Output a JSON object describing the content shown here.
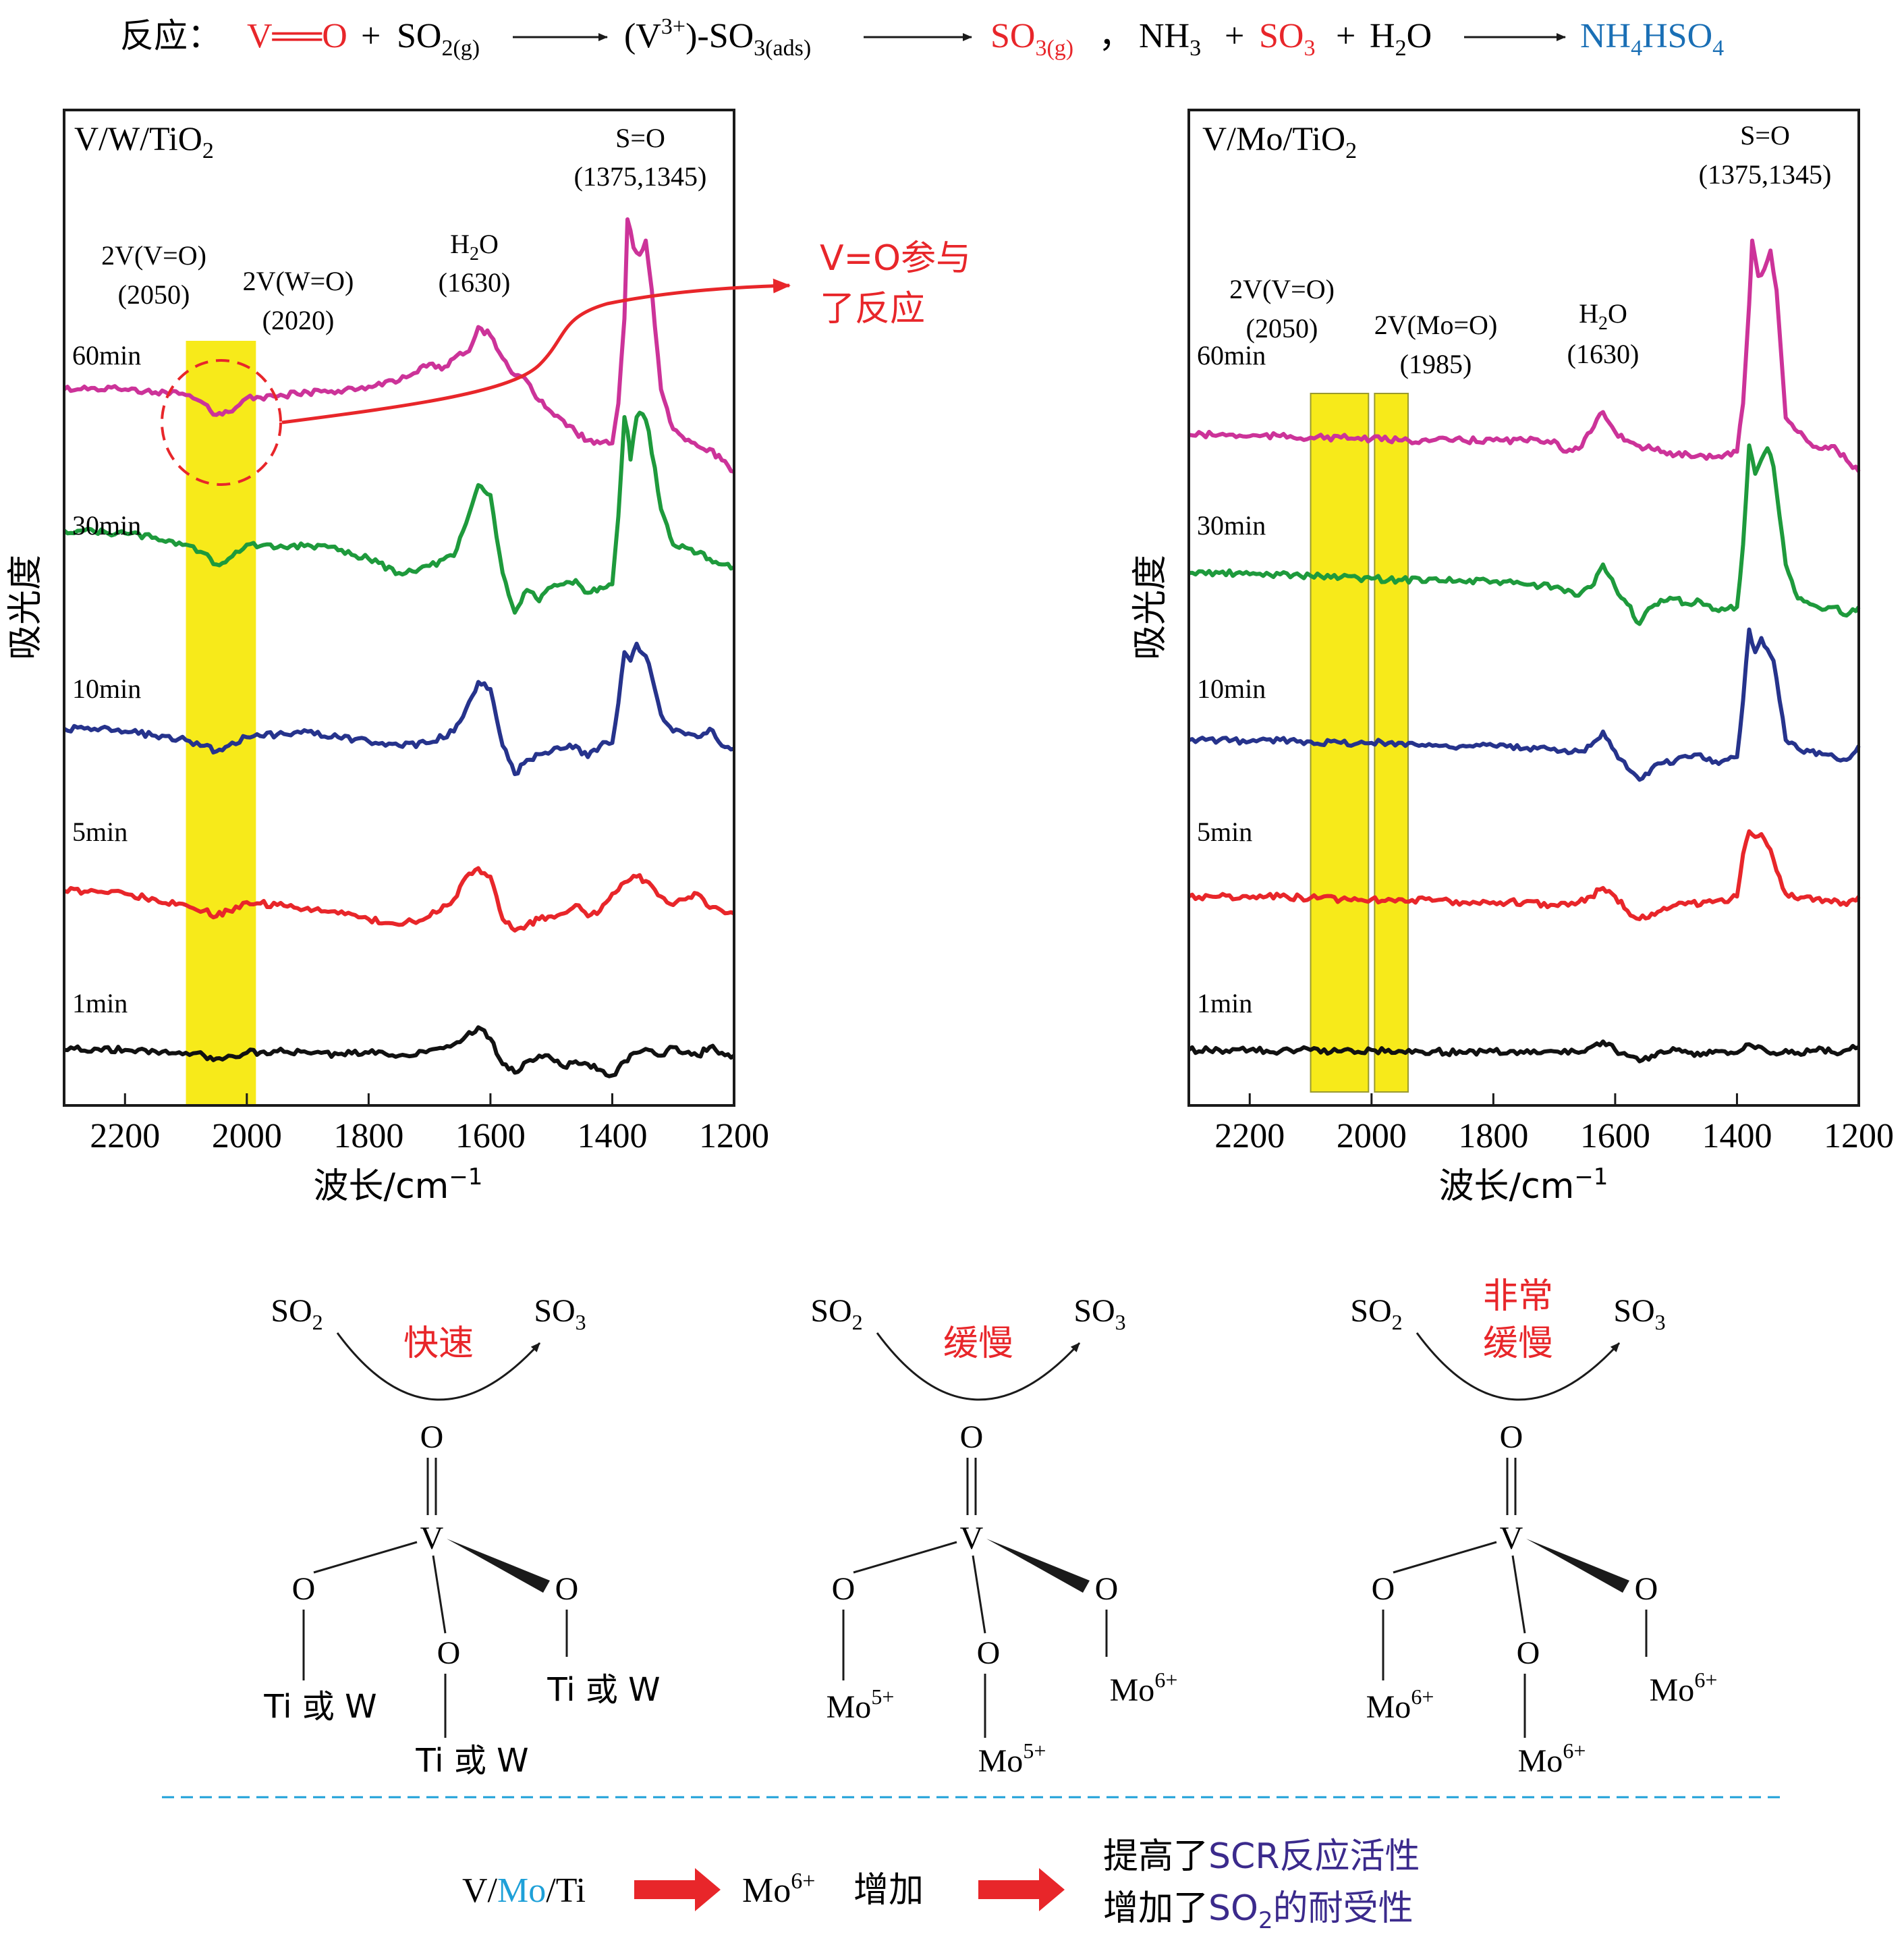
{
  "equation": {
    "label": "反应：",
    "vo": "V══O",
    "plus1": "+",
    "so2": "SO",
    "so2_sub": "2(g)",
    "v3": "(V",
    "v3_sup": "3+",
    "v3_rest": ")-SO",
    "v3_sub": "3(ads)",
    "so3g": "SO",
    "so3g_sub": "3(g)",
    "comma": "，",
    "nh3": "NH",
    "nh3_sub": "3",
    "plus2": "+",
    "so3": "SO",
    "so3_sub": "3",
    "plus3": "+",
    "h2o": "H",
    "h2o_sub": "2",
    "h2o_end": "O",
    "product": "NH",
    "product_sub1": "4",
    "product_mid": "HSO",
    "product_sub2": "4"
  },
  "colors": {
    "red": "#e8262a",
    "blue": "#1a6fb5",
    "cyan": "#1ea0d8",
    "purple": "#3b2a8c",
    "highlight": "#f7ea1a",
    "min60": "#cc3399",
    "min30": "#1e9a3c",
    "min10": "#26338c",
    "min5": "#e8262a",
    "min1": "#111111"
  },
  "chart_data": [
    {
      "type": "line",
      "panel": "left",
      "title": "V/W/TiO",
      "title_sub": "2",
      "xlabel": "波长/cm",
      "xlabel_sup": "−1",
      "ylabel": "吸光度",
      "xlim": [
        2300,
        1200
      ],
      "xticks": [
        "2200",
        "2000",
        "1800",
        "1600",
        "1400",
        "1200"
      ],
      "xtick_values": [
        2200,
        2000,
        1800,
        1600,
        1400,
        1200
      ],
      "highlight_bands": [
        [
          2100,
          1985
        ]
      ],
      "annotations": {
        "so": "S=O",
        "so_pos": "(1375,1345)",
        "h2o": "H",
        "h2o_sub": "2",
        "h2o_end": "O",
        "h2o_pos": "(1630)",
        "band1": "2V(V=O)",
        "band1_pos": "(2050)",
        "band2": "2V(W=O)",
        "band2_pos": "(2020)",
        "callout_line1": "V=O参与",
        "callout_line2": "了反应"
      },
      "series": [
        {
          "name": "60min",
          "x": [
            2300,
            2250,
            2200,
            2150,
            2100,
            2070,
            2050,
            2030,
            2000,
            1950,
            1900,
            1850,
            1800,
            1750,
            1720,
            1700,
            1680,
            1660,
            1640,
            1630,
            1620,
            1600,
            1580,
            1560,
            1540,
            1520,
            1500,
            1480,
            1460,
            1440,
            1420,
            1400,
            1390,
            1380,
            1375,
            1365,
            1355,
            1345,
            1335,
            1320,
            1300,
            1280,
            1260,
            1240,
            1220,
            1200
          ],
          "y": [
            0.6,
            0.61,
            0.6,
            0.58,
            0.56,
            0.5,
            0.42,
            0.44,
            0.54,
            0.55,
            0.58,
            0.59,
            0.62,
            0.66,
            0.72,
            0.78,
            0.74,
            0.82,
            0.86,
            0.92,
            1.04,
            0.98,
            0.82,
            0.7,
            0.66,
            0.52,
            0.44,
            0.38,
            0.3,
            0.24,
            0.22,
            0.22,
            0.5,
            1.1,
            1.8,
            1.6,
            1.55,
            1.65,
            1.3,
            0.6,
            0.32,
            0.24,
            0.2,
            0.18,
            0.1,
            0.02
          ]
        },
        {
          "name": "30min",
          "x": [
            2300,
            2250,
            2200,
            2150,
            2100,
            2070,
            2050,
            2030,
            2000,
            1950,
            1900,
            1850,
            1800,
            1750,
            1700,
            1660,
            1640,
            1620,
            1600,
            1580,
            1560,
            1540,
            1520,
            1500,
            1480,
            1460,
            1440,
            1420,
            1400,
            1390,
            1380,
            1375,
            1370,
            1360,
            1350,
            1340,
            1320,
            1300,
            1280,
            1260,
            1240,
            1220,
            1200
          ],
          "y": [
            0.7,
            0.69,
            0.68,
            0.65,
            0.6,
            0.54,
            0.46,
            0.5,
            0.6,
            0.58,
            0.6,
            0.56,
            0.5,
            0.4,
            0.45,
            0.52,
            0.75,
            1.02,
            0.95,
            0.4,
            0.12,
            0.28,
            0.2,
            0.3,
            0.32,
            0.35,
            0.26,
            0.3,
            0.32,
            0.8,
            1.5,
            1.4,
            1.2,
            1.5,
            1.52,
            1.4,
            0.85,
            0.6,
            0.58,
            0.54,
            0.5,
            0.46,
            0.44
          ]
        },
        {
          "name": "10min",
          "x": [
            2300,
            2250,
            2200,
            2150,
            2100,
            2070,
            2050,
            2030,
            2000,
            1950,
            1900,
            1850,
            1800,
            1750,
            1700,
            1660,
            1640,
            1620,
            1600,
            1580,
            1560,
            1540,
            1520,
            1500,
            1480,
            1460,
            1440,
            1420,
            1400,
            1390,
            1380,
            1370,
            1360,
            1350,
            1340,
            1330,
            1320,
            1300,
            1280,
            1260,
            1240,
            1220,
            1200
          ],
          "y": [
            0.42,
            0.42,
            0.4,
            0.37,
            0.34,
            0.3,
            0.26,
            0.3,
            0.36,
            0.38,
            0.4,
            0.36,
            0.33,
            0.3,
            0.32,
            0.4,
            0.56,
            0.75,
            0.7,
            0.3,
            0.1,
            0.2,
            0.24,
            0.26,
            0.28,
            0.3,
            0.22,
            0.3,
            0.32,
            0.6,
            0.96,
            0.9,
            1.02,
            0.95,
            0.88,
            0.7,
            0.52,
            0.4,
            0.38,
            0.36,
            0.42,
            0.3,
            0.28
          ]
        },
        {
          "name": "5min",
          "x": [
            2300,
            2250,
            2200,
            2150,
            2100,
            2070,
            2050,
            2030,
            2000,
            1950,
            1900,
            1850,
            1800,
            1750,
            1700,
            1660,
            1640,
            1620,
            1600,
            1580,
            1560,
            1540,
            1520,
            1500,
            1480,
            1460,
            1440,
            1420,
            1400,
            1380,
            1360,
            1340,
            1320,
            1300,
            1280,
            1260,
            1240,
            1220,
            1200
          ],
          "y": [
            0.3,
            0.3,
            0.28,
            0.24,
            0.2,
            0.16,
            0.12,
            0.16,
            0.22,
            0.2,
            0.18,
            0.14,
            0.1,
            0.06,
            0.12,
            0.24,
            0.4,
            0.46,
            0.4,
            0.1,
            0.02,
            0.06,
            0.1,
            0.12,
            0.14,
            0.2,
            0.12,
            0.16,
            0.28,
            0.36,
            0.4,
            0.36,
            0.26,
            0.2,
            0.24,
            0.28,
            0.18,
            0.16,
            0.14
          ]
        },
        {
          "name": "1min",
          "x": [
            2300,
            2250,
            2200,
            2150,
            2100,
            2070,
            2050,
            2030,
            2000,
            1950,
            1900,
            1850,
            1800,
            1750,
            1700,
            1660,
            1640,
            1620,
            1600,
            1580,
            1560,
            1540,
            1520,
            1500,
            1480,
            1460,
            1440,
            1420,
            1400,
            1380,
            1360,
            1340,
            1320,
            1300,
            1280,
            1260,
            1240,
            1220,
            1200
          ],
          "y": [
            0.32,
            0.33,
            0.32,
            0.31,
            0.3,
            0.28,
            0.26,
            0.28,
            0.3,
            0.31,
            0.3,
            0.29,
            0.3,
            0.28,
            0.32,
            0.36,
            0.42,
            0.48,
            0.4,
            0.22,
            0.16,
            0.24,
            0.28,
            0.26,
            0.2,
            0.24,
            0.22,
            0.18,
            0.14,
            0.24,
            0.3,
            0.32,
            0.28,
            0.34,
            0.3,
            0.28,
            0.34,
            0.3,
            0.28
          ]
        }
      ]
    },
    {
      "type": "line",
      "panel": "right",
      "title": "V/Mo/TiO",
      "title_sub": "2",
      "xlabel": "波长/cm",
      "xlabel_sup": "−1",
      "ylabel": "吸光度",
      "xlim": [
        2300,
        1200
      ],
      "xticks": [
        "2200",
        "2000",
        "1800",
        "1600",
        "1400",
        "1200"
      ],
      "xtick_values": [
        2200,
        2000,
        1800,
        1600,
        1400,
        1200
      ],
      "highlight_bands": [
        [
          2100,
          2005
        ],
        [
          1995,
          1940
        ]
      ],
      "annotations": {
        "so": "S=O",
        "so_pos": "(1375,1345)",
        "h2o": "H",
        "h2o_sub": "2",
        "h2o_end": "O",
        "h2o_pos": "(1630)",
        "band1": "2V(V=O)",
        "band1_pos": "(2050)",
        "band2": "2V(Mo=O)",
        "band2_pos": "(1985)"
      },
      "series": [
        {
          "name": "60min",
          "x": [
            2300,
            2250,
            2200,
            2150,
            2100,
            2050,
            2000,
            1950,
            1900,
            1850,
            1800,
            1750,
            1700,
            1680,
            1660,
            1640,
            1620,
            1600,
            1580,
            1560,
            1540,
            1520,
            1500,
            1480,
            1460,
            1440,
            1420,
            1400,
            1390,
            1380,
            1375,
            1365,
            1355,
            1345,
            1335,
            1320,
            1300,
            1280,
            1260,
            1240,
            1220,
            1200
          ],
          "y": [
            0.28,
            0.28,
            0.27,
            0.27,
            0.26,
            0.26,
            0.25,
            0.24,
            0.24,
            0.24,
            0.24,
            0.24,
            0.24,
            0.16,
            0.18,
            0.3,
            0.44,
            0.3,
            0.24,
            0.2,
            0.18,
            0.16,
            0.14,
            0.14,
            0.14,
            0.12,
            0.14,
            0.16,
            0.5,
            1.2,
            1.65,
            1.4,
            1.45,
            1.58,
            1.3,
            0.4,
            0.3,
            0.22,
            0.18,
            0.2,
            0.1,
            0.02
          ]
        },
        {
          "name": "30min",
          "x": [
            2300,
            2250,
            2200,
            2150,
            2100,
            2050,
            2000,
            1950,
            1900,
            1850,
            1800,
            1750,
            1700,
            1660,
            1640,
            1620,
            1600,
            1580,
            1560,
            1540,
            1520,
            1500,
            1480,
            1460,
            1440,
            1420,
            1400,
            1390,
            1380,
            1370,
            1360,
            1350,
            1340,
            1330,
            1320,
            1300,
            1280,
            1260,
            1240,
            1220,
            1200
          ],
          "y": [
            0.4,
            0.4,
            0.39,
            0.39,
            0.38,
            0.37,
            0.36,
            0.35,
            0.36,
            0.34,
            0.34,
            0.32,
            0.3,
            0.24,
            0.3,
            0.46,
            0.3,
            0.18,
            0.04,
            0.16,
            0.2,
            0.22,
            0.18,
            0.2,
            0.14,
            0.14,
            0.16,
            0.6,
            1.3,
            1.1,
            1.2,
            1.28,
            1.15,
            0.8,
            0.46,
            0.22,
            0.18,
            0.14,
            0.16,
            0.1,
            0.16
          ]
        },
        {
          "name": "10min",
          "x": [
            2300,
            2250,
            2200,
            2150,
            2100,
            2050,
            2000,
            1950,
            1900,
            1850,
            1800,
            1750,
            1700,
            1660,
            1640,
            1620,
            1600,
            1580,
            1560,
            1540,
            1520,
            1500,
            1480,
            1460,
            1440,
            1420,
            1400,
            1390,
            1380,
            1370,
            1360,
            1350,
            1340,
            1330,
            1320,
            1300,
            1280,
            1260,
            1240,
            1220,
            1200
          ],
          "y": [
            0.34,
            0.34,
            0.33,
            0.34,
            0.33,
            0.32,
            0.32,
            0.32,
            0.3,
            0.3,
            0.3,
            0.28,
            0.28,
            0.26,
            0.3,
            0.4,
            0.26,
            0.14,
            0.06,
            0.14,
            0.18,
            0.2,
            0.22,
            0.24,
            0.18,
            0.2,
            0.22,
            0.62,
            1.12,
            0.96,
            1.06,
            0.98,
            0.9,
            0.62,
            0.34,
            0.28,
            0.26,
            0.24,
            0.22,
            0.2,
            0.3
          ]
        },
        {
          "name": "5min",
          "x": [
            2300,
            2250,
            2200,
            2150,
            2100,
            2050,
            2000,
            1950,
            1900,
            1850,
            1800,
            1750,
            1700,
            1660,
            1640,
            1620,
            1600,
            1580,
            1560,
            1540,
            1520,
            1500,
            1480,
            1460,
            1440,
            1420,
            1400,
            1390,
            1380,
            1370,
            1360,
            1350,
            1340,
            1330,
            1320,
            1300,
            1280,
            1260,
            1240,
            1220,
            1200
          ],
          "y": [
            0.26,
            0.26,
            0.25,
            0.26,
            0.25,
            0.24,
            0.24,
            0.24,
            0.23,
            0.22,
            0.22,
            0.22,
            0.2,
            0.22,
            0.26,
            0.32,
            0.26,
            0.16,
            0.1,
            0.14,
            0.18,
            0.2,
            0.22,
            0.2,
            0.22,
            0.22,
            0.26,
            0.56,
            0.72,
            0.68,
            0.7,
            0.62,
            0.52,
            0.4,
            0.28,
            0.24,
            0.26,
            0.22,
            0.24,
            0.2,
            0.26
          ]
        },
        {
          "name": "1min",
          "x": [
            2300,
            2250,
            2200,
            2150,
            2100,
            2050,
            2000,
            1950,
            1900,
            1850,
            1800,
            1750,
            1700,
            1660,
            1640,
            1620,
            1600,
            1580,
            1560,
            1540,
            1520,
            1500,
            1480,
            1460,
            1440,
            1420,
            1400,
            1380,
            1360,
            1340,
            1320,
            1300,
            1280,
            1260,
            1240,
            1220,
            1200
          ],
          "y": [
            0.32,
            0.32,
            0.32,
            0.31,
            0.32,
            0.31,
            0.32,
            0.31,
            0.31,
            0.3,
            0.31,
            0.3,
            0.31,
            0.3,
            0.34,
            0.38,
            0.32,
            0.28,
            0.24,
            0.28,
            0.3,
            0.32,
            0.3,
            0.28,
            0.3,
            0.31,
            0.3,
            0.36,
            0.34,
            0.3,
            0.32,
            0.3,
            0.31,
            0.33,
            0.3,
            0.32,
            0.34
          ]
        }
      ]
    }
  ],
  "mechanisms": [
    {
      "reactant": "SO",
      "reactant_sub": "2",
      "product": "SO",
      "product_sub": "3",
      "rate": [
        "快速"
      ],
      "top_o": "O",
      "v": "V",
      "o_left": "O",
      "o_mid": "O",
      "o_right": "O",
      "sub_left": "Ti 或 W",
      "sub_mid": "Ti 或 W",
      "sub_right": "Ti 或 W",
      "sub_left_sup": "",
      "sub_mid_sup": "",
      "sub_right_sup": ""
    },
    {
      "reactant": "SO",
      "reactant_sub": "2",
      "product": "SO",
      "product_sub": "3",
      "rate": [
        "缓慢"
      ],
      "top_o": "O",
      "v": "V",
      "o_left": "O",
      "o_mid": "O",
      "o_right": "O",
      "sub_left": "Mo",
      "sub_mid": "Mo",
      "sub_right": "Mo",
      "sub_left_sup": "5+",
      "sub_mid_sup": "5+",
      "sub_right_sup": "6+"
    },
    {
      "reactant": "SO",
      "reactant_sub": "2",
      "product": "SO",
      "product_sub": "3",
      "rate": [
        "非常",
        "缓慢"
      ],
      "top_o": "O",
      "v": "V",
      "o_left": "O",
      "o_mid": "O",
      "o_right": "O",
      "sub_left": "Mo",
      "sub_mid": "Mo",
      "sub_right": "Mo",
      "sub_left_sup": "6+",
      "sub_mid_sup": "6+",
      "sub_right_sup": "6+"
    }
  ],
  "conclusion": {
    "cat_v": "V/",
    "cat_mo": "Mo",
    "cat_ti": "/Ti",
    "mo6": "Mo",
    "mo6_sup": "6+",
    "increase": "增加",
    "line1_a": "提高了",
    "line1_b": "SCR反应活性",
    "line2_a": "增加了",
    "line2_b": "SO",
    "line2_sub": "2",
    "line2_c": "的耐受性"
  }
}
